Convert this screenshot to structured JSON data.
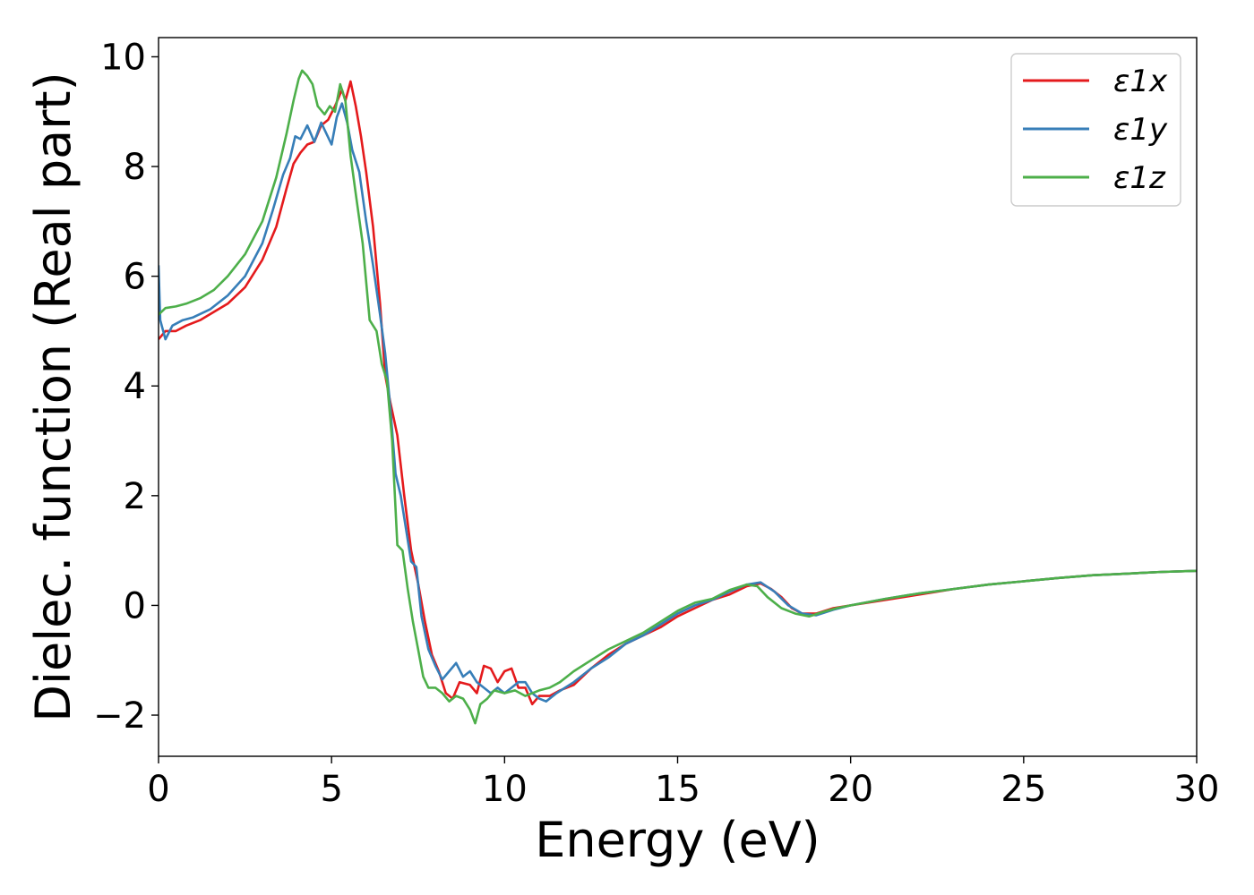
{
  "chart_data": {
    "type": "line",
    "title": "",
    "xlabel": "Energy (eV)",
    "ylabel": "Dielec. function (Real part)",
    "xlim": [
      0,
      30
    ],
    "ylim": [
      -2.75,
      10.35
    ],
    "xticks": [
      0,
      5,
      10,
      15,
      20,
      25,
      30
    ],
    "xtick_labels": [
      "0",
      "5",
      "10",
      "15",
      "20",
      "25",
      "30"
    ],
    "yticks": [
      -2,
      0,
      2,
      4,
      6,
      8,
      10
    ],
    "ytick_labels": [
      "−2",
      "0",
      "2",
      "4",
      "6",
      "8",
      "10"
    ],
    "grid": false,
    "legend_position": "top-right",
    "series": [
      {
        "name": "ε1x",
        "color": "#e41a1c",
        "points": [
          [
            0,
            4.85
          ],
          [
            0.2,
            5.0
          ],
          [
            0.5,
            5.0
          ],
          [
            0.8,
            5.1
          ],
          [
            1.2,
            5.2
          ],
          [
            1.6,
            5.35
          ],
          [
            2.0,
            5.5
          ],
          [
            2.5,
            5.8
          ],
          [
            3.0,
            6.3
          ],
          [
            3.4,
            6.9
          ],
          [
            3.7,
            7.6
          ],
          [
            3.9,
            8.05
          ],
          [
            4.1,
            8.25
          ],
          [
            4.3,
            8.4
          ],
          [
            4.5,
            8.45
          ],
          [
            4.7,
            8.75
          ],
          [
            4.9,
            8.85
          ],
          [
            5.1,
            9.1
          ],
          [
            5.3,
            9.4
          ],
          [
            5.4,
            9.2
          ],
          [
            5.55,
            9.55
          ],
          [
            5.7,
            9.1
          ],
          [
            5.85,
            8.55
          ],
          [
            6.0,
            7.9
          ],
          [
            6.2,
            6.9
          ],
          [
            6.4,
            5.5
          ],
          [
            6.55,
            4.2
          ],
          [
            6.7,
            3.7
          ],
          [
            6.9,
            3.1
          ],
          [
            7.1,
            2.0
          ],
          [
            7.3,
            1.0
          ],
          [
            7.5,
            0.4
          ],
          [
            7.7,
            -0.3
          ],
          [
            7.9,
            -0.9
          ],
          [
            8.1,
            -1.2
          ],
          [
            8.3,
            -1.6
          ],
          [
            8.5,
            -1.7
          ],
          [
            8.7,
            -1.4
          ],
          [
            9.0,
            -1.45
          ],
          [
            9.2,
            -1.6
          ],
          [
            9.4,
            -1.1
          ],
          [
            9.6,
            -1.15
          ],
          [
            9.8,
            -1.4
          ],
          [
            10.0,
            -1.2
          ],
          [
            10.2,
            -1.15
          ],
          [
            10.4,
            -1.5
          ],
          [
            10.6,
            -1.5
          ],
          [
            10.8,
            -1.8
          ],
          [
            11.0,
            -1.65
          ],
          [
            11.3,
            -1.65
          ],
          [
            11.6,
            -1.55
          ],
          [
            12.0,
            -1.45
          ],
          [
            12.5,
            -1.15
          ],
          [
            13.0,
            -0.9
          ],
          [
            13.5,
            -0.7
          ],
          [
            14.0,
            -0.55
          ],
          [
            14.5,
            -0.4
          ],
          [
            15.0,
            -0.2
          ],
          [
            15.5,
            -0.05
          ],
          [
            16.0,
            0.1
          ],
          [
            16.5,
            0.2
          ],
          [
            17.0,
            0.35
          ],
          [
            17.4,
            0.4
          ],
          [
            17.7,
            0.3
          ],
          [
            18.0,
            0.15
          ],
          [
            18.3,
            -0.05
          ],
          [
            18.6,
            -0.15
          ],
          [
            19.0,
            -0.15
          ],
          [
            19.5,
            -0.05
          ],
          [
            20.0,
            0.0
          ],
          [
            21.0,
            0.1
          ],
          [
            22.0,
            0.2
          ],
          [
            23.0,
            0.3
          ],
          [
            24.0,
            0.38
          ],
          [
            25.0,
            0.44
          ],
          [
            26.0,
            0.5
          ],
          [
            27.0,
            0.55
          ],
          [
            28.0,
            0.58
          ],
          [
            29.0,
            0.61
          ],
          [
            30.0,
            0.63
          ]
        ]
      },
      {
        "name": "ε1y",
        "color": "#377eb8",
        "points": [
          [
            0,
            6.2
          ],
          [
            0.05,
            5.2
          ],
          [
            0.2,
            4.85
          ],
          [
            0.4,
            5.1
          ],
          [
            0.7,
            5.2
          ],
          [
            1.0,
            5.25
          ],
          [
            1.5,
            5.4
          ],
          [
            2.0,
            5.65
          ],
          [
            2.5,
            6.0
          ],
          [
            3.0,
            6.6
          ],
          [
            3.3,
            7.2
          ],
          [
            3.6,
            7.85
          ],
          [
            3.8,
            8.15
          ],
          [
            3.95,
            8.55
          ],
          [
            4.1,
            8.5
          ],
          [
            4.3,
            8.75
          ],
          [
            4.5,
            8.45
          ],
          [
            4.7,
            8.8
          ],
          [
            4.85,
            8.6
          ],
          [
            5.0,
            8.4
          ],
          [
            5.15,
            8.9
          ],
          [
            5.3,
            9.15
          ],
          [
            5.45,
            8.8
          ],
          [
            5.6,
            8.3
          ],
          [
            5.8,
            7.9
          ],
          [
            6.0,
            7.0
          ],
          [
            6.2,
            6.2
          ],
          [
            6.4,
            5.3
          ],
          [
            6.55,
            4.6
          ],
          [
            6.7,
            3.6
          ],
          [
            6.85,
            2.4
          ],
          [
            7.0,
            2.0
          ],
          [
            7.15,
            1.4
          ],
          [
            7.3,
            0.8
          ],
          [
            7.45,
            0.7
          ],
          [
            7.6,
            -0.2
          ],
          [
            7.8,
            -0.8
          ],
          [
            8.0,
            -1.1
          ],
          [
            8.2,
            -1.35
          ],
          [
            8.4,
            -1.2
          ],
          [
            8.6,
            -1.05
          ],
          [
            8.8,
            -1.3
          ],
          [
            9.0,
            -1.2
          ],
          [
            9.2,
            -1.4
          ],
          [
            9.4,
            -1.5
          ],
          [
            9.6,
            -1.6
          ],
          [
            9.8,
            -1.5
          ],
          [
            10.0,
            -1.6
          ],
          [
            10.2,
            -1.5
          ],
          [
            10.4,
            -1.4
          ],
          [
            10.6,
            -1.4
          ],
          [
            10.8,
            -1.6
          ],
          [
            11.0,
            -1.7
          ],
          [
            11.2,
            -1.75
          ],
          [
            11.5,
            -1.6
          ],
          [
            12.0,
            -1.4
          ],
          [
            12.5,
            -1.15
          ],
          [
            13.0,
            -0.95
          ],
          [
            13.5,
            -0.7
          ],
          [
            14.0,
            -0.55
          ],
          [
            14.5,
            -0.35
          ],
          [
            15.0,
            -0.15
          ],
          [
            15.5,
            0.0
          ],
          [
            16.0,
            0.1
          ],
          [
            16.5,
            0.25
          ],
          [
            17.0,
            0.38
          ],
          [
            17.4,
            0.42
          ],
          [
            17.8,
            0.25
          ],
          [
            18.2,
            0.0
          ],
          [
            18.6,
            -0.15
          ],
          [
            19.0,
            -0.18
          ],
          [
            19.5,
            -0.08
          ],
          [
            20.0,
            0.0
          ],
          [
            21.0,
            0.12
          ],
          [
            22.0,
            0.22
          ],
          [
            23.0,
            0.3
          ],
          [
            24.0,
            0.38
          ],
          [
            25.0,
            0.44
          ],
          [
            26.0,
            0.5
          ],
          [
            27.0,
            0.55
          ],
          [
            28.0,
            0.58
          ],
          [
            29.0,
            0.61
          ],
          [
            30.0,
            0.63
          ]
        ]
      },
      {
        "name": "ε1z",
        "color": "#4daf4a",
        "points": [
          [
            0,
            5.3
          ],
          [
            0.2,
            5.42
          ],
          [
            0.5,
            5.45
          ],
          [
            0.8,
            5.5
          ],
          [
            1.2,
            5.6
          ],
          [
            1.6,
            5.75
          ],
          [
            2.0,
            6.0
          ],
          [
            2.5,
            6.4
          ],
          [
            3.0,
            7.0
          ],
          [
            3.4,
            7.8
          ],
          [
            3.7,
            8.6
          ],
          [
            3.9,
            9.2
          ],
          [
            4.05,
            9.6
          ],
          [
            4.15,
            9.75
          ],
          [
            4.3,
            9.65
          ],
          [
            4.45,
            9.5
          ],
          [
            4.6,
            9.1
          ],
          [
            4.8,
            8.95
          ],
          [
            4.95,
            9.1
          ],
          [
            5.1,
            9.0
          ],
          [
            5.25,
            9.5
          ],
          [
            5.4,
            9.2
          ],
          [
            5.55,
            8.2
          ],
          [
            5.7,
            7.5
          ],
          [
            5.9,
            6.6
          ],
          [
            6.1,
            5.2
          ],
          [
            6.3,
            5.0
          ],
          [
            6.45,
            4.4
          ],
          [
            6.6,
            4.1
          ],
          [
            6.75,
            3.0
          ],
          [
            6.9,
            1.1
          ],
          [
            7.05,
            1.0
          ],
          [
            7.2,
            0.3
          ],
          [
            7.35,
            -0.3
          ],
          [
            7.5,
            -0.8
          ],
          [
            7.65,
            -1.3
          ],
          [
            7.8,
            -1.5
          ],
          [
            8.0,
            -1.5
          ],
          [
            8.2,
            -1.6
          ],
          [
            8.4,
            -1.75
          ],
          [
            8.6,
            -1.65
          ],
          [
            8.8,
            -1.7
          ],
          [
            9.0,
            -1.9
          ],
          [
            9.15,
            -2.15
          ],
          [
            9.3,
            -1.8
          ],
          [
            9.5,
            -1.7
          ],
          [
            9.7,
            -1.55
          ],
          [
            10.0,
            -1.6
          ],
          [
            10.3,
            -1.55
          ],
          [
            10.6,
            -1.65
          ],
          [
            11.0,
            -1.55
          ],
          [
            11.3,
            -1.5
          ],
          [
            11.6,
            -1.4
          ],
          [
            12.0,
            -1.2
          ],
          [
            12.5,
            -1.0
          ],
          [
            13.0,
            -0.8
          ],
          [
            13.5,
            -0.65
          ],
          [
            14.0,
            -0.5
          ],
          [
            14.5,
            -0.3
          ],
          [
            15.0,
            -0.1
          ],
          [
            15.5,
            0.05
          ],
          [
            16.0,
            0.12
          ],
          [
            16.5,
            0.28
          ],
          [
            17.0,
            0.38
          ],
          [
            17.3,
            0.35
          ],
          [
            17.6,
            0.15
          ],
          [
            18.0,
            -0.05
          ],
          [
            18.4,
            -0.15
          ],
          [
            18.8,
            -0.2
          ],
          [
            19.2,
            -0.12
          ],
          [
            19.6,
            -0.05
          ],
          [
            20.0,
            0.0
          ],
          [
            21.0,
            0.12
          ],
          [
            22.0,
            0.22
          ],
          [
            23.0,
            0.3
          ],
          [
            24.0,
            0.38
          ],
          [
            25.0,
            0.44
          ],
          [
            26.0,
            0.5
          ],
          [
            27.0,
            0.55
          ],
          [
            28.0,
            0.58
          ],
          [
            29.0,
            0.61
          ],
          [
            30.0,
            0.63
          ]
        ]
      }
    ]
  }
}
